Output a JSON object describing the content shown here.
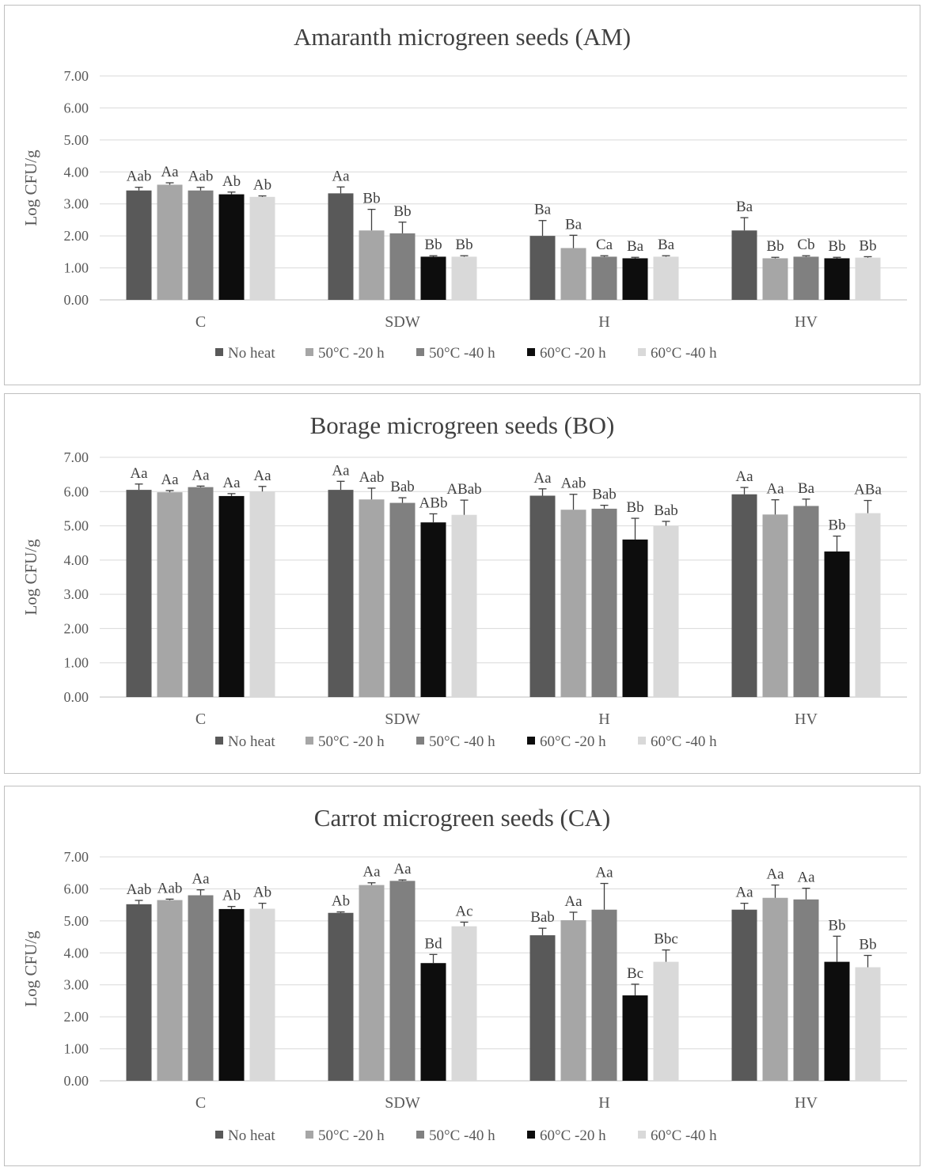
{
  "colors": {
    "No heat": "#595959",
    "50°C -20 h": "#a6a6a6",
    "50°C -40 h": "#808080",
    "60°C -20 h": "#0d0d0d",
    "60°C -40 h": "#d9d9d9"
  },
  "chart_data": [
    {
      "type": "bar",
      "title": "Amaranth microgreen seeds (AM)",
      "ylabel": "Log CFU/g",
      "xlabel": "",
      "ylim": [
        0,
        7
      ],
      "yticks": [
        "0.00",
        "1.00",
        "2.00",
        "3.00",
        "4.00",
        "5.00",
        "6.00",
        "7.00"
      ],
      "categories": [
        "C",
        "SDW",
        "H",
        "HV"
      ],
      "legend_position": "bottom",
      "series": [
        {
          "name": "No heat",
          "values": [
            3.42,
            3.33,
            2.0,
            2.17
          ],
          "errors": [
            0.1,
            0.2,
            0.48,
            0.4
          ],
          "labels": [
            "Aab",
            "Aa",
            "Ba",
            "Ba"
          ]
        },
        {
          "name": "50°C -20 h",
          "values": [
            3.6,
            2.17,
            1.62,
            1.3
          ],
          "errors": [
            0.06,
            0.66,
            0.4,
            0.03
          ],
          "labels": [
            "Aa",
            "Bb",
            "Ba",
            "Bb"
          ]
        },
        {
          "name": "50°C -40 h",
          "values": [
            3.42,
            2.08,
            1.35,
            1.35
          ],
          "errors": [
            0.1,
            0.35,
            0.03,
            0.03
          ],
          "labels": [
            "Aab",
            "Bb",
            "Ca",
            "Cb"
          ]
        },
        {
          "name": "60°C -20 h",
          "values": [
            3.3,
            1.35,
            1.3,
            1.3
          ],
          "errors": [
            0.07,
            0.03,
            0.03,
            0.03
          ],
          "labels": [
            "Ab",
            "Bb",
            "Ba",
            "Bb"
          ]
        },
        {
          "name": "60°C -40 h",
          "values": [
            3.22,
            1.35,
            1.35,
            1.32
          ],
          "errors": [
            0.03,
            0.03,
            0.03,
            0.03
          ],
          "labels": [
            "Ab",
            "Bb",
            "Ba",
            "Bb"
          ]
        }
      ]
    },
    {
      "type": "bar",
      "title": "Borage microgreen seeds (BO)",
      "ylabel": "Log CFU/g",
      "xlabel": "",
      "ylim": [
        0,
        7
      ],
      "yticks": [
        "0.00",
        "1.00",
        "2.00",
        "3.00",
        "4.00",
        "5.00",
        "6.00",
        "7.00"
      ],
      "categories": [
        "C",
        "SDW",
        "H",
        "HV"
      ],
      "legend_position": "bottom",
      "series": [
        {
          "name": "No heat",
          "values": [
            6.05,
            6.05,
            5.88,
            5.92
          ],
          "errors": [
            0.17,
            0.25,
            0.2,
            0.2
          ],
          "labels": [
            "Aa",
            "Aa",
            "Aa",
            "Aa"
          ]
        },
        {
          "name": "50°C -20 h",
          "values": [
            5.98,
            5.77,
            5.47,
            5.33
          ],
          "errors": [
            0.05,
            0.33,
            0.45,
            0.43
          ],
          "labels": [
            "Aa",
            "Aab",
            "Aab",
            "Aa"
          ]
        },
        {
          "name": "50°C -40 h",
          "values": [
            6.13,
            5.67,
            5.5,
            5.58
          ],
          "errors": [
            0.03,
            0.15,
            0.1,
            0.2
          ],
          "labels": [
            "Aa",
            "Bab",
            "Bab",
            "Ba"
          ]
        },
        {
          "name": "60°C -20 h",
          "values": [
            5.87,
            5.1,
            4.6,
            4.25
          ],
          "errors": [
            0.07,
            0.25,
            0.62,
            0.45
          ],
          "labels": [
            "Aa",
            "ABb",
            "Bb",
            "Bb"
          ]
        },
        {
          "name": "60°C -40 h",
          "values": [
            6.0,
            5.32,
            5.0,
            5.37
          ],
          "errors": [
            0.15,
            0.43,
            0.13,
            0.37
          ],
          "labels": [
            "Aa",
            "ABab",
            "Bab",
            "ABa"
          ]
        }
      ]
    },
    {
      "type": "bar",
      "title": "Carrot microgreen seeds (CA)",
      "ylabel": "Log CFU/g",
      "xlabel": "",
      "ylim": [
        0,
        7
      ],
      "yticks": [
        "0.00",
        "1.00",
        "2.00",
        "3.00",
        "4.00",
        "5.00",
        "6.00",
        "7.00"
      ],
      "categories": [
        "C",
        "SDW",
        "H",
        "HV"
      ],
      "legend_position": "bottom",
      "series": [
        {
          "name": "No heat",
          "values": [
            5.52,
            5.25,
            4.55,
            5.35
          ],
          "errors": [
            0.12,
            0.03,
            0.22,
            0.2
          ],
          "labels": [
            "Aab",
            "Ab",
            "Bab",
            "Aa"
          ]
        },
        {
          "name": "50°C -20 h",
          "values": [
            5.65,
            6.12,
            5.02,
            5.72
          ],
          "errors": [
            0.03,
            0.07,
            0.25,
            0.4
          ],
          "labels": [
            "Aab",
            "Aa",
            "Aa",
            "Aa"
          ]
        },
        {
          "name": "50°C -40 h",
          "values": [
            5.8,
            6.25,
            5.35,
            5.67
          ],
          "errors": [
            0.17,
            0.03,
            0.82,
            0.35
          ],
          "labels": [
            "Aa",
            "Aa",
            "Aa",
            "Aa"
          ]
        },
        {
          "name": "60°C -20 h",
          "values": [
            5.37,
            3.68,
            2.67,
            3.72
          ],
          "errors": [
            0.08,
            0.27,
            0.35,
            0.8
          ],
          "labels": [
            "Ab",
            "Bd",
            "Bc",
            "Bb"
          ]
        },
        {
          "name": "60°C -40 h",
          "values": [
            5.38,
            4.83,
            3.72,
            3.55
          ],
          "errors": [
            0.17,
            0.13,
            0.37,
            0.37
          ],
          "labels": [
            "Ab",
            "Ac",
            "Bbc",
            "Bb"
          ]
        }
      ]
    }
  ]
}
